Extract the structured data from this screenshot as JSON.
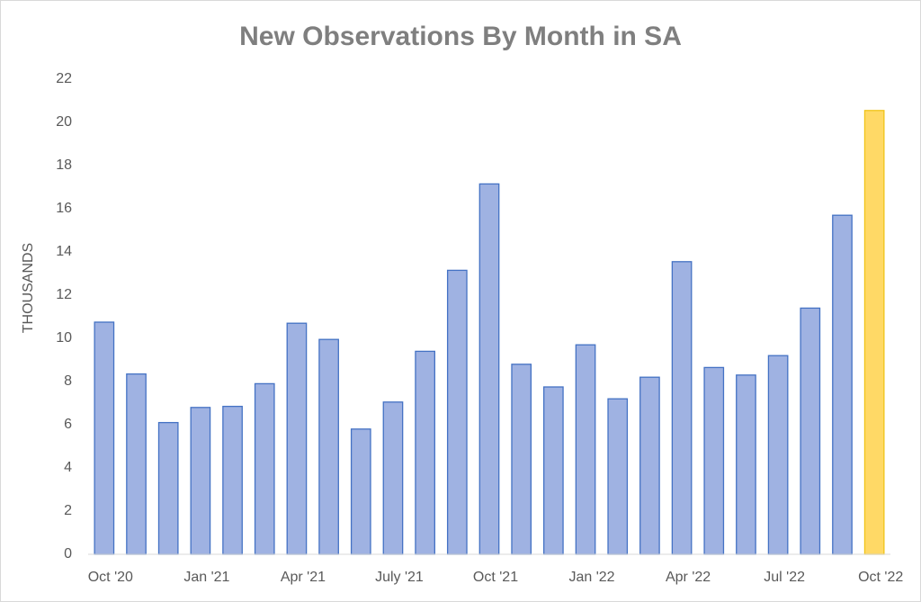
{
  "chart_data": {
    "type": "bar",
    "title": "New Observations By Month in SA",
    "y_label": "THOUSANDS",
    "categories": [
      "Oct '20",
      null,
      null,
      "Jan '21",
      null,
      null,
      "Apr '21",
      null,
      null,
      "July '21",
      null,
      null,
      "Oct '21",
      null,
      null,
      "Jan '22",
      null,
      null,
      "Apr '22",
      null,
      null,
      "Jul '22",
      null,
      null,
      "Oct '22"
    ],
    "values": [
      10.75,
      8.35,
      6.1,
      6.8,
      6.85,
      7.9,
      10.7,
      9.95,
      5.8,
      7.05,
      9.4,
      13.15,
      17.15,
      8.8,
      7.75,
      9.7,
      7.2,
      8.2,
      13.55,
      8.65,
      8.3,
      9.2,
      11.4,
      15.7,
      20.55
    ],
    "colors": [
      "#9fb2e2",
      "#9fb2e2",
      "#9fb2e2",
      "#9fb2e2",
      "#9fb2e2",
      "#9fb2e2",
      "#9fb2e2",
      "#9fb2e2",
      "#9fb2e2",
      "#9fb2e2",
      "#9fb2e2",
      "#9fb2e2",
      "#9fb2e2",
      "#9fb2e2",
      "#9fb2e2",
      "#9fb2e2",
      "#9fb2e2",
      "#9fb2e2",
      "#9fb2e2",
      "#9fb2e2",
      "#9fb2e2",
      "#9fb2e2",
      "#9fb2e2",
      "#9fb2e2",
      "#ffd966"
    ],
    "ylim": [
      0,
      22
    ],
    "yticks": [
      0,
      2,
      4,
      6,
      8,
      10,
      12,
      14,
      16,
      18,
      20,
      22
    ],
    "grid": false
  }
}
